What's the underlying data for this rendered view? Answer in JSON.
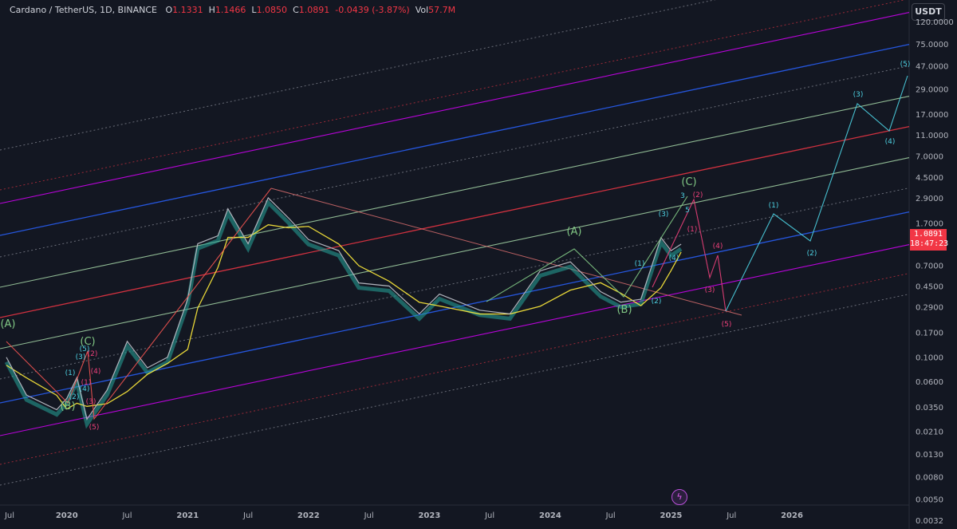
{
  "header": {
    "symbol": "Cardano / TetherUS, 1D, BINANCE",
    "open_label": "O",
    "open": "1.1331",
    "high_label": "H",
    "high": "1.1466",
    "low_label": "L",
    "low": "1.0850",
    "close_label": "C",
    "close": "1.0891",
    "change": "-0.0439 (-3.87%)",
    "vol_label": "Vol",
    "vol": "57.7M"
  },
  "currency_button": "USDT",
  "last_price": {
    "price": "1.0891",
    "countdown": "18:47:23",
    "color": "#f23645"
  },
  "chart_data": {
    "type": "line",
    "scale": "log",
    "ylim": [
      0.0032,
      120
    ],
    "price_axis_ticks": [
      "120.0000",
      "75.0000",
      "47.0000",
      "29.0000",
      "17.0000",
      "11.0000",
      "7.0000",
      "4.5000",
      "2.9000",
      "1.7000",
      "0.7000",
      "0.4500",
      "0.2900",
      "0.1700",
      "0.1000",
      "0.0600",
      "0.0350",
      "0.0210",
      "0.0130",
      "0.0080",
      "0.0050",
      "0.0032"
    ],
    "time_axis_ticks": [
      "Jul",
      "2020",
      "Jul",
      "2021",
      "Jul",
      "2022",
      "Jul",
      "2023",
      "Jul",
      "2024",
      "Jul",
      "2025",
      "Jul",
      "2026"
    ],
    "price_series": {
      "name": "ADA/USDT",
      "x": [
        "2019-07",
        "2019-09",
        "2019-12",
        "2020-01",
        "2020-02",
        "2020-03",
        "2020-05",
        "2020-07",
        "2020-09",
        "2020-11",
        "2021-01",
        "2021-02",
        "2021-04",
        "2021-05",
        "2021-07",
        "2021-09",
        "2021-11",
        "2022-01",
        "2022-04",
        "2022-06",
        "2022-09",
        "2022-12",
        "2023-02",
        "2023-06",
        "2023-09",
        "2023-12",
        "2024-03",
        "2024-06",
        "2024-08",
        "2024-10",
        "2024-12",
        "2025-01",
        "2025-02"
      ],
      "y": [
        0.1,
        0.045,
        0.033,
        0.042,
        0.065,
        0.027,
        0.05,
        0.14,
        0.08,
        0.1,
        0.34,
        1.1,
        1.3,
        2.3,
        1.1,
        2.9,
        1.9,
        1.2,
        0.95,
        0.48,
        0.45,
        0.25,
        0.38,
        0.27,
        0.25,
        0.62,
        0.75,
        0.4,
        0.32,
        0.34,
        1.25,
        0.95,
        1.09
      ]
    },
    "wave_labels": {
      "green": [
        "(A)",
        "(B)",
        "(C)",
        "(A)",
        "(B)",
        "(C)"
      ],
      "cyan": [
        "(1)",
        "(2)",
        "(3)",
        "(4)",
        "(5)",
        "(1)",
        "(2)",
        "(3)",
        "(4)",
        "(1)",
        "(2)",
        "(3)",
        "(4)",
        "(5)",
        "3",
        "5"
      ],
      "pink": [
        "(1)",
        "(2)",
        "(3)",
        "(4)",
        "(5)",
        "(1)",
        "(2)",
        "(3)",
        "(4)",
        "(5)"
      ]
    },
    "colors": {
      "background": "#131722",
      "blue_channel": "#2962ff",
      "red_channel": "#f23645",
      "green_channel": "#a5d6a7",
      "magenta_channel": "#d500f9",
      "dotted_channel": "#787b86",
      "forecast_cyan": "#4dd0e1",
      "forecast_pink": "#ec407a",
      "ma_yellow": "#ffeb3b",
      "ribbon_green": "#26a69a",
      "ribbon_red": "#ef5350"
    }
  }
}
